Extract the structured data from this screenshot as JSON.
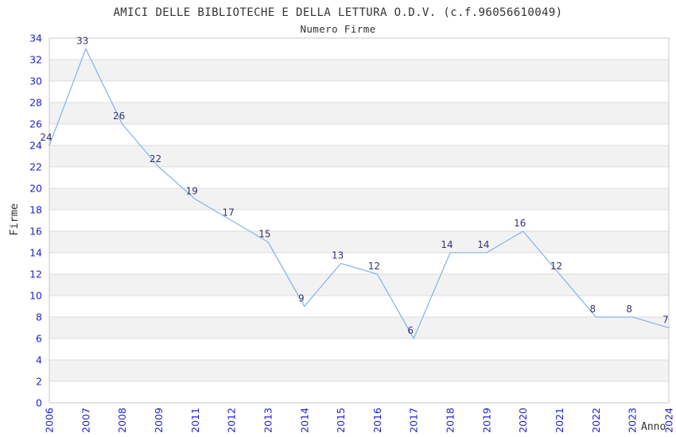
{
  "chart_data": {
    "type": "line",
    "title": "AMICI DELLE BIBLIOTECHE E DELLA LETTURA O.D.V. (c.f.96056610049)",
    "subtitle": "Numero Firme",
    "xlabel": "Anno",
    "ylabel": "Firme",
    "categories": [
      "2006",
      "2007",
      "2008",
      "2009",
      "2011",
      "2012",
      "2013",
      "2014",
      "2015",
      "2016",
      "2017",
      "2018",
      "2019",
      "2020",
      "2021",
      "2022",
      "2023",
      "2024"
    ],
    "values": [
      24,
      33,
      26,
      22,
      19,
      17,
      15,
      9,
      13,
      12,
      6,
      14,
      14,
      16,
      12,
      8,
      8,
      7
    ],
    "ylim": [
      0,
      34
    ],
    "ytick_step": 2,
    "grid": "horizontal-lines-with-alternating-bands",
    "legend_position": "none",
    "point_labels_visible": true,
    "colors": {
      "line": "#8ab6e8",
      "axis_tick_label": "#2222cc",
      "point_label": "#333377",
      "band_fill": "#f2f2f2",
      "gridline": "#dcdcdc",
      "plot_border": "#c8c8c8",
      "title_text": "#333333",
      "background": "#ffffff"
    }
  }
}
